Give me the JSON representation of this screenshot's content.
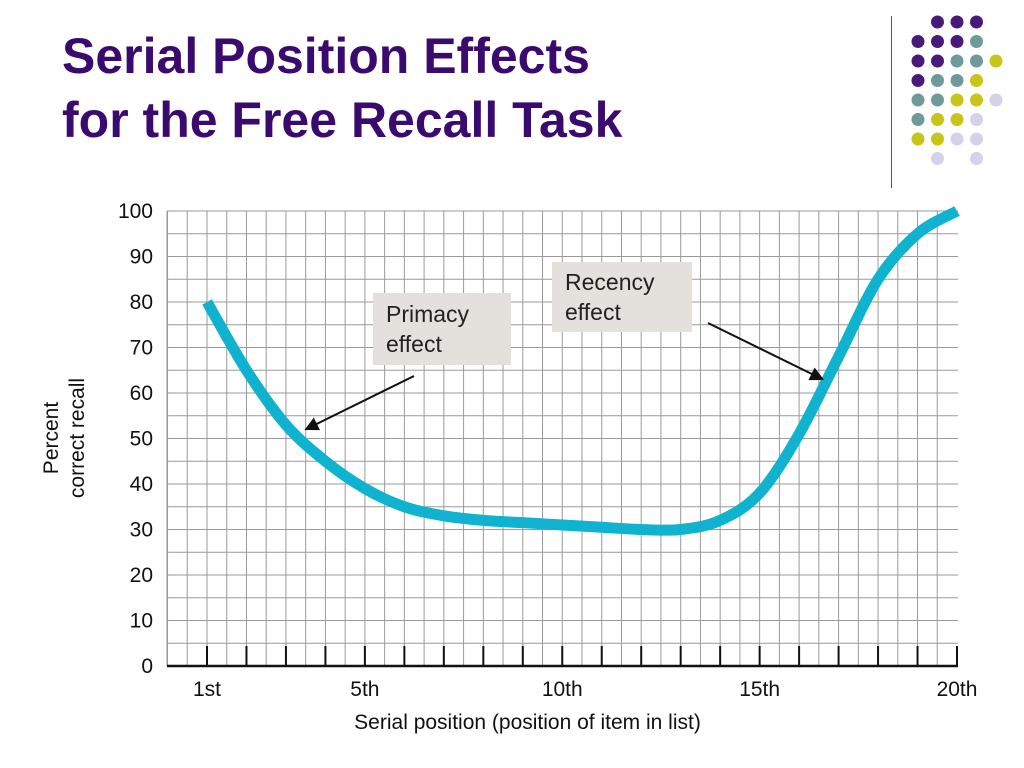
{
  "slide": {
    "title_lines": [
      "Serial Position Effects",
      "for the Free Recall Task"
    ]
  },
  "decoration": {
    "dot_colors": {
      "purple": "#4a1a7a",
      "teal": "#6f9a9a",
      "olive": "#c8c41a",
      "lavender": "#d4d2e8"
    }
  },
  "chart_data": {
    "type": "line",
    "xlabel": "Serial position (position of item in list)",
    "ylabel_lines": [
      "Percent",
      "correct recall"
    ],
    "xlim": [
      1,
      20
    ],
    "ylim": [
      0,
      100
    ],
    "x_ticks": [
      1,
      2,
      3,
      4,
      5,
      6,
      7,
      8,
      9,
      10,
      11,
      12,
      13,
      14,
      15,
      16,
      17,
      18,
      19,
      20
    ],
    "x_tick_labels": [
      {
        "x": 1,
        "label": "1st"
      },
      {
        "x": 5,
        "label": "5th"
      },
      {
        "x": 10,
        "label": "10th"
      },
      {
        "x": 15,
        "label": "15th"
      },
      {
        "x": 20,
        "label": "20th"
      }
    ],
    "y_ticks": [
      0,
      10,
      20,
      30,
      40,
      50,
      60,
      70,
      80,
      90,
      100
    ],
    "grid": true,
    "line_color": "#0fb3cf",
    "series": [
      {
        "x": [
          1,
          2,
          3,
          4,
          5,
          6,
          7,
          8,
          9,
          10,
          11,
          12,
          13,
          14,
          15,
          16,
          17,
          18,
          19,
          20
        ],
        "values": [
          80,
          65,
          53,
          45,
          39,
          35,
          33,
          32,
          31.5,
          31,
          30.5,
          30,
          30,
          32,
          38,
          51,
          68,
          85,
          95,
          100
        ]
      }
    ],
    "annotations": [
      {
        "lines": [
          "Primacy",
          "effect"
        ],
        "arrow_to": {
          "x": 3.5,
          "y": 52
        }
      },
      {
        "lines": [
          "Recency",
          "effect"
        ],
        "arrow_to": {
          "x": 16.6,
          "y": 63
        }
      }
    ]
  }
}
